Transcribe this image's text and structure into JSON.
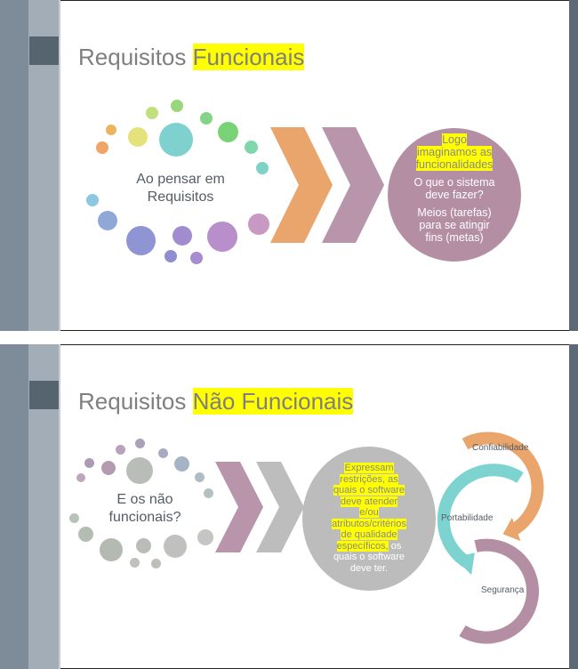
{
  "slide1": {
    "title_plain": "Requisitos ",
    "title_highlight": "Funcionais",
    "center_text": [
      "Ao pensar em",
      "Requisitos"
    ],
    "circle": {
      "highlight_lines": [
        "Logo",
        "imaginamos as",
        "funcionalidades"
      ],
      "lines": [
        "O que o sistema",
        "deve fazer?",
        "Meios (tarefas)",
        "para se atingir",
        "fins (metas)"
      ]
    },
    "colors": {
      "chevron1": "#e9a56b",
      "chevron2": "#b895aa",
      "circle": "#b48ea3"
    }
  },
  "slide2": {
    "title_plain": "Requisitos ",
    "title_highlight": "Não Funcionais",
    "center_text": [
      "E os não",
      "funcionais?"
    ],
    "circle": {
      "highlight_lines": [
        "Expressam",
        "restrições, as",
        "quais o software",
        "deve atender",
        "e/ou",
        "atributos/critérios",
        "de qualidade",
        "específicos,"
      ],
      "tail_first": " os",
      "lines": [
        "quais o software",
        "deve ter."
      ]
    },
    "arcs": [
      "Confiabilidade",
      "Portabilidade",
      "Segurança"
    ],
    "colors": {
      "chevron1": "#b895aa",
      "chevron2": "#bdbdbd",
      "circle": "#bcbcbc",
      "arc1": "#e9a56b",
      "arc2": "#7dd3d0",
      "arc3": "#b48ea3"
    }
  }
}
